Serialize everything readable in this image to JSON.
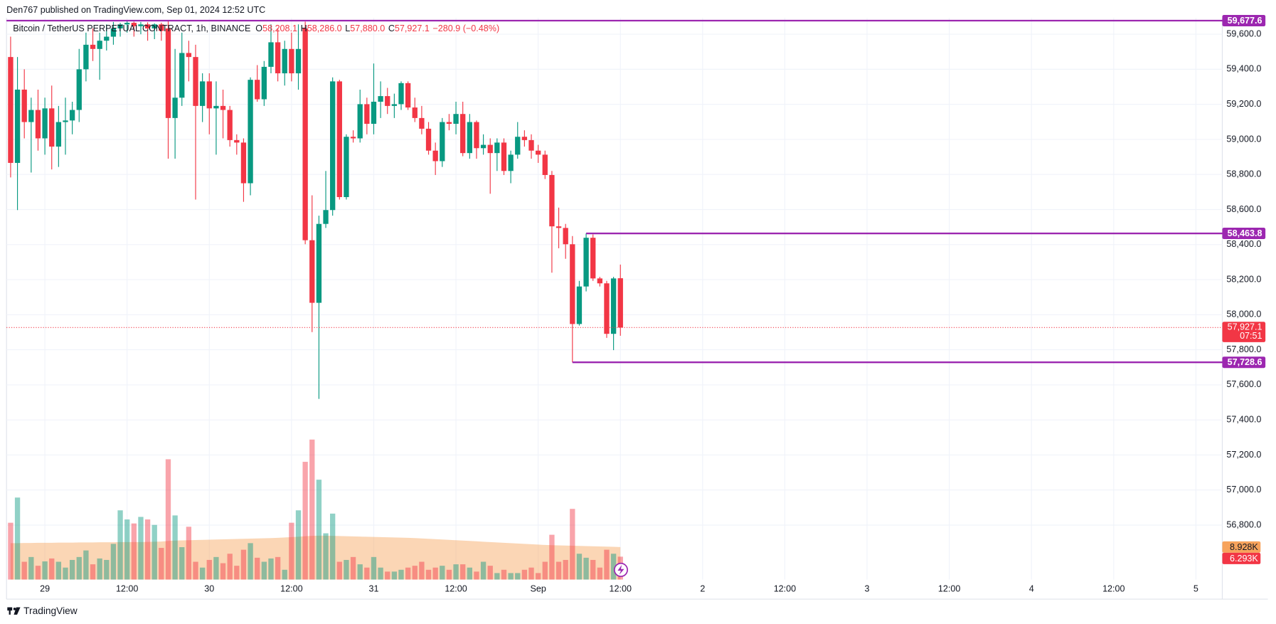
{
  "header": "Den767 published on TradingView.com, Sep 01, 2024 12:52 UTC",
  "footer": "TradingView",
  "chart_data": {
    "type": "candlestick",
    "title": "Bitcoin / TetherUS PERPETUAL CONTRACT, 1h, BINANCE",
    "ohlc_legend": [
      {
        "key": "O",
        "label": "58,208.1"
      },
      {
        "key": "H",
        "label": "58,286.0"
      },
      {
        "key": "L",
        "label": "57,880.0"
      },
      {
        "key": "C",
        "label": "57,927.1"
      }
    ],
    "change": "−280.9 (−0.48%)",
    "x": [
      -5,
      -4,
      -3,
      -2,
      -1,
      0,
      1,
      2,
      3,
      4,
      5,
      6,
      7,
      8,
      9,
      10,
      11,
      12,
      13,
      14,
      15,
      16,
      17,
      18,
      19,
      20,
      21,
      22,
      23,
      24,
      25,
      26,
      27,
      28,
      29,
      30,
      31,
      32,
      33,
      34,
      35,
      36,
      37,
      38,
      39,
      40,
      41,
      42,
      43,
      44,
      45,
      46,
      47,
      48,
      49,
      50,
      51,
      52,
      53,
      54,
      55,
      56,
      57,
      58,
      59,
      60,
      61,
      62,
      63,
      64,
      65,
      66,
      67,
      68,
      69,
      70,
      71,
      72,
      73,
      74,
      75,
      76,
      77,
      78,
      79,
      80,
      81,
      82,
      83,
      84
    ],
    "open": [
      59470,
      58866,
      59284,
      59099,
      59168,
      59006,
      59177,
      58959,
      59099,
      59108,
      59168,
      59400,
      59540,
      59516,
      59563,
      59586,
      59633,
      59656,
      59665,
      59646,
      59656,
      59633,
      59656,
      59633,
      59122,
      59238,
      59493,
      59470,
      59191,
      59331,
      59177,
      59191,
      59168,
      58996,
      58982,
      58750,
      59340,
      59229,
      59414,
      59554,
      59377,
      59516,
      59377,
      59633,
      58425,
      58068,
      58518,
      58597,
      59331,
      58671,
      59015,
      59006,
      59201,
      59089,
      59215,
      59247,
      59191,
      59201,
      59321,
      59182,
      59122,
      59061,
      58936,
      58876,
      59099,
      59089,
      59145,
      58922,
      59099,
      58950,
      58969,
      58922,
      58982,
      58820,
      58913,
      59015,
      58996,
      58936,
      58913,
      58797,
      58504,
      58495,
      58402,
      57947,
      58161,
      58439,
      58207,
      58179,
      57891,
      58208.1
    ],
    "high": [
      59586,
      59470,
      59400,
      59238,
      59284,
      59238,
      59307,
      59191,
      59238,
      59215,
      59516,
      59609,
      59633,
      59609,
      59656,
      59670,
      59665,
      59677.6,
      59672,
      59670,
      59668,
      59662,
      59666,
      59675,
      59516,
      59609,
      59563,
      59540,
      59377,
      59377,
      59331,
      59284,
      59191,
      59029,
      59006,
      59354,
      59424,
      59447,
      59656,
      59633,
      59563,
      59609,
      59656,
      59672,
      58681,
      58565,
      58820,
      59354,
      59340,
      59029,
      59052,
      59284,
      59238,
      59433,
      59331,
      59294,
      59261,
      59331,
      59331,
      59238,
      59191,
      59099,
      58982,
      59122,
      59145,
      59215,
      59215,
      59145,
      59108,
      59029,
      59006,
      59006,
      59006,
      58936,
      59099,
      59052,
      59029,
      58969,
      58936,
      58820,
      58611,
      58518,
      58449,
      58193,
      58463.8,
      58458,
      58216,
      58193,
      58216,
      58286
    ],
    "low": [
      58783,
      58597,
      59006,
      58811,
      58936,
      58913,
      58829,
      58843,
      58913,
      59029,
      59099,
      59331,
      59447,
      59340,
      59507,
      59540,
      59586,
      59609,
      59586,
      59600,
      59563,
      59572,
      59563,
      58890,
      58890,
      59191,
      59331,
      58657,
      59099,
      59029,
      58913,
      59006,
      58959,
      58913,
      58644,
      58681,
      59215,
      59191,
      59377,
      59331,
      59307,
      59331,
      59284,
      58402,
      57901,
      57520,
      58495,
      58565,
      58657,
      58657,
      58982,
      58982,
      59029,
      59029,
      59122,
      59145,
      59122,
      59168,
      59168,
      59099,
      59029,
      58913,
      58797,
      58843,
      59052,
      59029,
      58904,
      58890,
      58890,
      58913,
      58690,
      58820,
      58797,
      58750,
      58890,
      58959,
      58890,
      58866,
      58774,
      58240,
      58379,
      58319,
      57728.6,
      57938,
      58133,
      58193,
      58161,
      57868,
      57798,
      57880
    ],
    "close": [
      58866,
      59284,
      59099,
      59168,
      59006,
      59177,
      58959,
      59099,
      59108,
      59168,
      59400,
      59540,
      59516,
      59563,
      59586,
      59633,
      59656,
      59665,
      59646,
      59656,
      59633,
      59656,
      59619,
      59122,
      59238,
      59493,
      59470,
      59191,
      59331,
      59177,
      59191,
      59168,
      58996,
      58982,
      58750,
      59340,
      59229,
      59414,
      59554,
      59377,
      59516,
      59377,
      59516,
      58425,
      58068,
      58518,
      58597,
      59331,
      58671,
      59015,
      59006,
      59201,
      59089,
      59215,
      59247,
      59191,
      59201,
      59321,
      59182,
      59122,
      59061,
      58936,
      58876,
      59099,
      59089,
      59145,
      58922,
      59099,
      58950,
      58969,
      58922,
      58982,
      58820,
      58913,
      59015,
      58996,
      58936,
      58913,
      58797,
      58504,
      58495,
      58402,
      57947,
      58161,
      58439,
      58207,
      58179,
      57891,
      58207,
      57927.1
    ],
    "up_color": "#089981",
    "down_color": "#f23645",
    "volume": {
      "axis": "y2",
      "last_label": "6.293K",
      "values": [
        15600,
        22500,
        4900,
        6200,
        3800,
        5000,
        5800,
        4900,
        3300,
        5400,
        6200,
        8000,
        4200,
        5800,
        5400,
        9800,
        19000,
        16500,
        15400,
        17200,
        16500,
        15000,
        8700,
        33000,
        17600,
        8900,
        14500,
        4900,
        3300,
        5400,
        6200,
        4500,
        7100,
        3800,
        8200,
        10000,
        6000,
        4900,
        5800,
        6200,
        2700,
        15600,
        19000,
        32300,
        38400,
        27400,
        12700,
        18100,
        4900,
        5400,
        6200,
        4200,
        3300,
        6200,
        3300,
        2200,
        2200,
        2700,
        3300,
        3800,
        4900,
        2700,
        3300,
        3800,
        2700,
        4200,
        4200,
        3300,
        2200,
        4900,
        3800,
        1800,
        2700,
        1800,
        1800,
        2700,
        3300,
        1800,
        4900,
        12300,
        4900,
        5400,
        19400,
        7100,
        6000,
        5400,
        3300,
        8200,
        7100,
        6293
      ]
    },
    "volume_ma": {
      "axis": "y2",
      "color": "#f7a35c",
      "label": "8.928K",
      "values": [
        10000,
        10000,
        10050,
        10050,
        10100,
        10100,
        10100,
        10150,
        10150,
        10150,
        10200,
        10200,
        10200,
        10250,
        10250,
        10250,
        10300,
        10300,
        10300,
        10300,
        10350,
        10400,
        10450,
        10600,
        10700,
        10750,
        10800,
        10850,
        10900,
        10950,
        11000,
        11050,
        11100,
        11150,
        11200,
        11250,
        11300,
        11350,
        11400,
        11450,
        11550,
        11650,
        11750,
        11900,
        12000,
        12050,
        12050,
        12000,
        11950,
        11900,
        11850,
        11800,
        11750,
        11700,
        11650,
        11600,
        11550,
        11500,
        11450,
        11400,
        11300,
        11200,
        11100,
        11000,
        10900,
        10800,
        10700,
        10600,
        10500,
        10400,
        10300,
        10200,
        10100,
        10000,
        9900,
        9800,
        9700,
        9600,
        9500,
        9450,
        9400,
        9350,
        9300,
        9250,
        9200,
        9150,
        9100,
        9050,
        9000,
        8928
      ]
    },
    "hlines": [
      {
        "value": 59677.6,
        "label": "59,677.6"
      },
      {
        "value": 58463.8,
        "label": "58,463.8",
        "x": 79
      },
      {
        "value": 57728.6,
        "label": "57,728.6",
        "x": 77
      }
    ],
    "hline_color": "#9c27b0",
    "last_price": {
      "value": 57927.1,
      "label": "57,927.1",
      "countdown": "07:51"
    },
    "xlim": [
      -5.6,
      171.85
    ],
    "xticks": [
      {
        "value": 0,
        "label": "29"
      },
      {
        "value": 12,
        "label": "12:00"
      },
      {
        "value": 24,
        "label": "30"
      },
      {
        "value": 36,
        "label": "12:00"
      },
      {
        "value": 48,
        "label": "31"
      },
      {
        "value": 60,
        "label": "12:00"
      },
      {
        "value": 72,
        "label": "Sep"
      },
      {
        "value": 84,
        "label": "12:00"
      },
      {
        "value": 96,
        "label": "2"
      },
      {
        "value": 108,
        "label": "12:00"
      },
      {
        "value": 120,
        "label": "3"
      },
      {
        "value": 132,
        "label": "12:00"
      },
      {
        "value": 144,
        "label": "4"
      },
      {
        "value": 156,
        "label": "12:00"
      },
      {
        "value": 168,
        "label": "5"
      }
    ],
    "ylim": [
      56489,
      59693
    ],
    "yticks": [
      {
        "value": 56800,
        "label": "56,800.0"
      },
      {
        "value": 57000,
        "label": "57,000.0"
      },
      {
        "value": 57200,
        "label": "57,200.0"
      },
      {
        "value": 57400,
        "label": "57,400.0"
      },
      {
        "value": 57600,
        "label": "57,600.0"
      },
      {
        "value": 57800,
        "label": "57,800.0"
      },
      {
        "value": 58000,
        "label": "58,000.0"
      },
      {
        "value": 58200,
        "label": "58,200.0"
      },
      {
        "value": 58400,
        "label": "58,400.0"
      },
      {
        "value": 58600,
        "label": "58,600.0"
      },
      {
        "value": 58800,
        "label": "58,800.0"
      },
      {
        "value": 59000,
        "label": "59,000.0"
      },
      {
        "value": 59200,
        "label": "59,200.0"
      },
      {
        "value": 59400,
        "label": "59,400.0"
      },
      {
        "value": 59600,
        "label": "59,600.0"
      }
    ],
    "y2lim": [
      0,
      154000
    ],
    "grid": true
  }
}
